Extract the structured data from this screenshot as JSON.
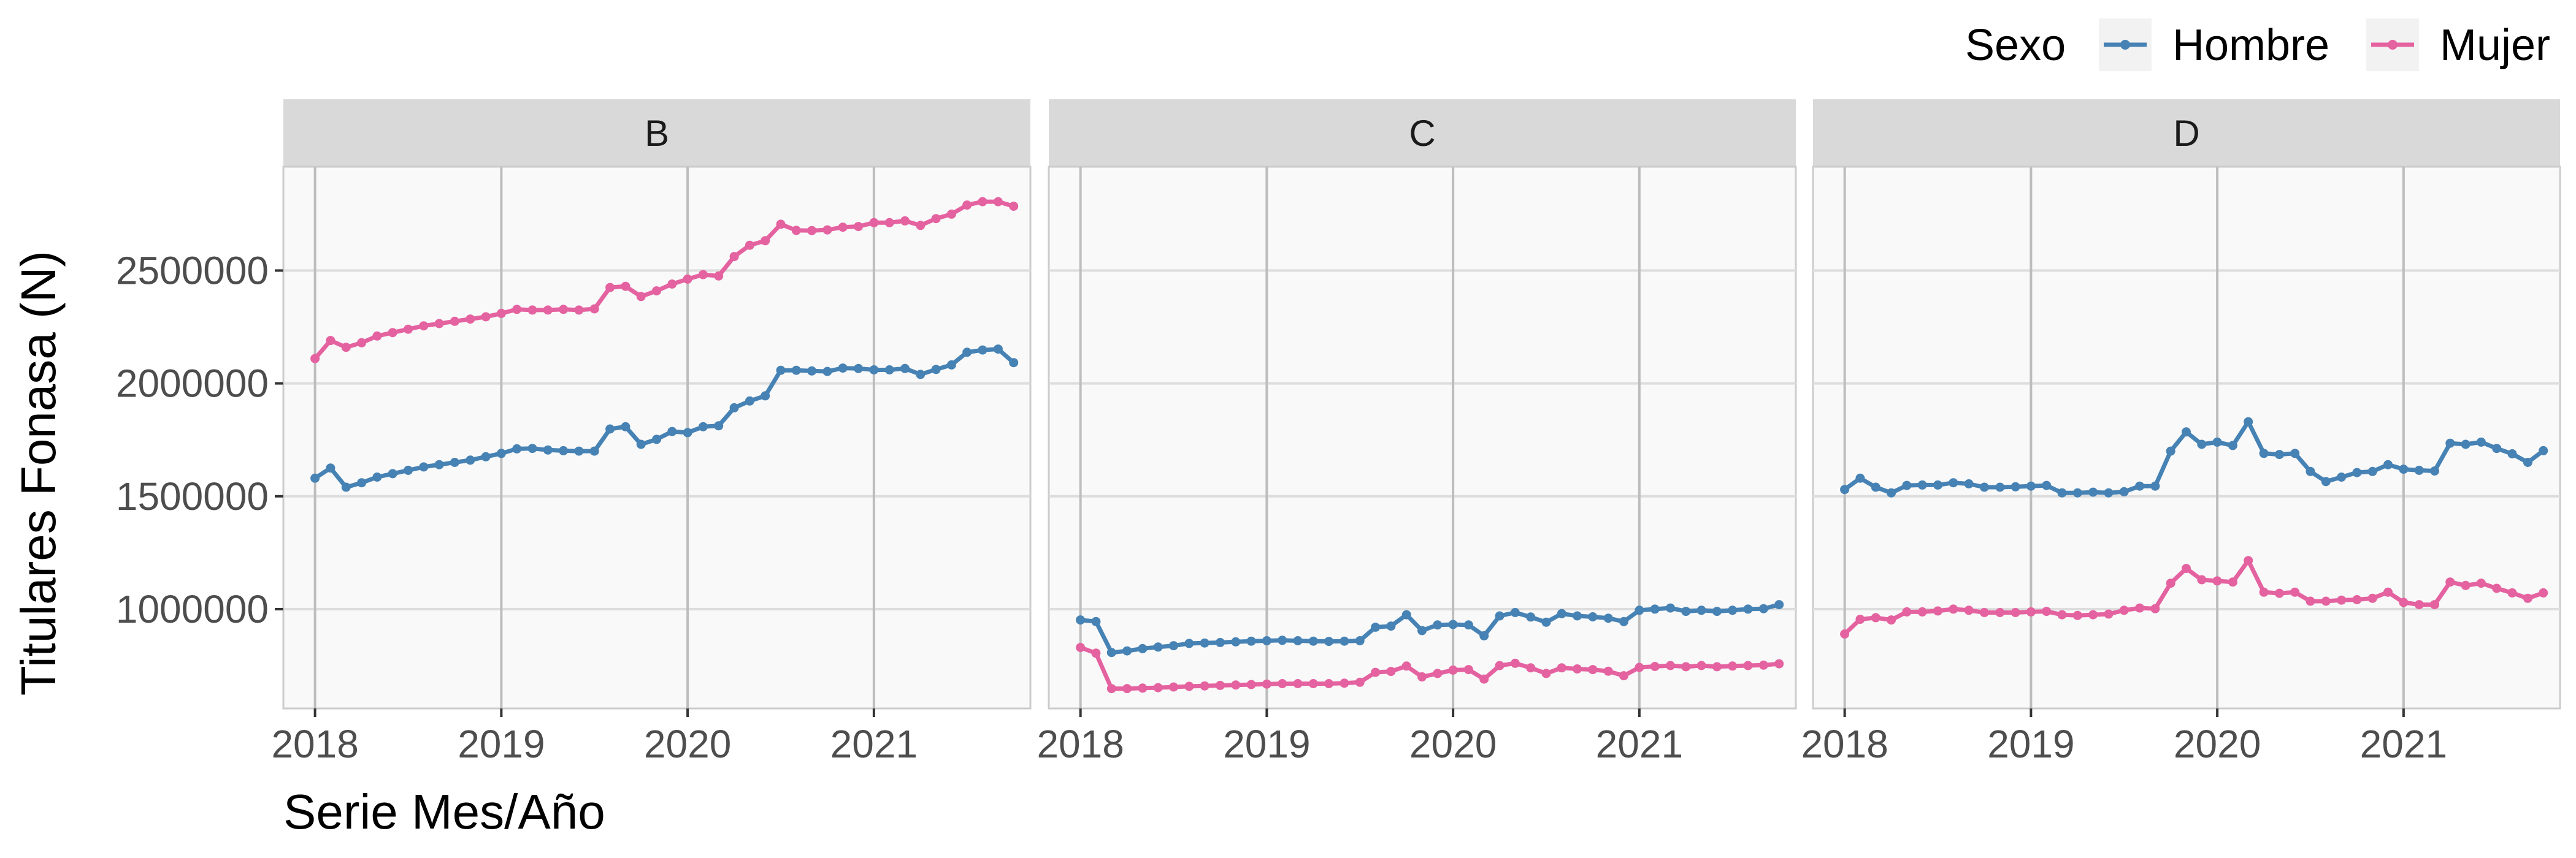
{
  "chart_data": {
    "type": "line",
    "title": "",
    "xlabel": "Serie Mes/Año",
    "ylabel": "Titulares Fonasa (N)",
    "legend": {
      "title": "Sexo",
      "position": "top-right",
      "entries": [
        {
          "name": "Hombre",
          "color": "#4682B4"
        },
        {
          "name": "Mujer",
          "color": "#E462A0"
        }
      ]
    },
    "x_ticks": [
      2018,
      2019,
      2020,
      2021
    ],
    "xlim": [
      2017.83,
      2021.84
    ],
    "y_ticks": [
      1000000,
      1500000,
      2000000,
      2500000
    ],
    "y_tick_labels": [
      "1000000",
      "1500000",
      "2000000",
      "2500000"
    ],
    "ylim": [
      560000,
      2960000
    ],
    "grid": true,
    "x_start": 2018,
    "x_step_months": 1,
    "panels": [
      {
        "label": "B",
        "series": [
          {
            "name": "Hombre",
            "color": "#4682B4",
            "values": [
              1580000,
              1625000,
              1540000,
              1560000,
              1585000,
              1600000,
              1615000,
              1630000,
              1640000,
              1650000,
              1660000,
              1675000,
              1690000,
              1710000,
              1712000,
              1705000,
              1702000,
              1700000,
              1700000,
              1798000,
              1808000,
              1730000,
              1752000,
              1787000,
              1782000,
              1808000,
              1812000,
              1892000,
              1922000,
              1945000,
              2058000,
              2058000,
              2055000,
              2053000,
              2068000,
              2066000,
              2060000,
              2060000,
              2066000,
              2040000,
              2062000,
              2082000,
              2138000,
              2148000,
              2152000,
              2092000
            ]
          },
          {
            "name": "Mujer",
            "color": "#E462A0",
            "values": [
              2110000,
              2190000,
              2160000,
              2180000,
              2210000,
              2225000,
              2240000,
              2255000,
              2265000,
              2275000,
              2285000,
              2295000,
              2310000,
              2328000,
              2325000,
              2325000,
              2328000,
              2325000,
              2330000,
              2425000,
              2430000,
              2385000,
              2410000,
              2440000,
              2462000,
              2482000,
              2476000,
              2562000,
              2612000,
              2632000,
              2705000,
              2678000,
              2677000,
              2680000,
              2692000,
              2695000,
              2712000,
              2712000,
              2720000,
              2700000,
              2730000,
              2750000,
              2790000,
              2805000,
              2805000,
              2785000
            ]
          }
        ]
      },
      {
        "label": "C",
        "series": [
          {
            "name": "Hombre",
            "color": "#4682B4",
            "values": [
              952000,
              945000,
              808000,
              815000,
              825000,
              832000,
              838000,
              848000,
              850000,
              852000,
              855000,
              858000,
              860000,
              862000,
              860000,
              858000,
              857000,
              858000,
              860000,
              920000,
              925000,
              975000,
              905000,
              930000,
              932000,
              930000,
              882000,
              970000,
              985000,
              965000,
              942000,
              980000,
              970000,
              966000,
              960000,
              945000,
              995000,
              1000000,
              1005000,
              990000,
              995000,
              990000,
              995000,
              1000000,
              1002000,
              1020000
            ]
          },
          {
            "name": "Mujer",
            "color": "#E462A0",
            "values": [
              830000,
              805000,
              648000,
              648000,
              650000,
              652000,
              655000,
              658000,
              660000,
              662000,
              664000,
              666000,
              668000,
              670000,
              670000,
              670000,
              670000,
              672000,
              676000,
              720000,
              724000,
              748000,
              700000,
              715000,
              730000,
              732000,
              690000,
              750000,
              760000,
              740000,
              715000,
              740000,
              735000,
              732000,
              725000,
              705000,
              742000,
              746000,
              750000,
              745000,
              750000,
              745000,
              748000,
              750000,
              752000,
              758000
            ]
          }
        ]
      },
      {
        "label": "D",
        "series": [
          {
            "name": "Hombre",
            "color": "#4682B4",
            "values": [
              1530000,
              1580000,
              1540000,
              1515000,
              1548000,
              1550000,
              1550000,
              1560000,
              1555000,
              1540000,
              1540000,
              1542000,
              1545000,
              1548000,
              1515000,
              1515000,
              1518000,
              1515000,
              1520000,
              1545000,
              1545000,
              1700000,
              1785000,
              1730000,
              1740000,
              1725000,
              1830000,
              1690000,
              1685000,
              1690000,
              1610000,
              1565000,
              1585000,
              1605000,
              1610000,
              1640000,
              1620000,
              1615000,
              1612000,
              1735000,
              1730000,
              1740000,
              1712000,
              1688000,
              1650000,
              1702000
            ]
          },
          {
            "name": "Mujer",
            "color": "#E462A0",
            "values": [
              890000,
              955000,
              962000,
              952000,
              988000,
              988000,
              992000,
              1000000,
              995000,
              985000,
              985000,
              985000,
              988000,
              990000,
              975000,
              972000,
              975000,
              978000,
              995000,
              1005000,
              1002000,
              1115000,
              1180000,
              1130000,
              1125000,
              1120000,
              1215000,
              1075000,
              1070000,
              1075000,
              1035000,
              1035000,
              1040000,
              1042000,
              1048000,
              1075000,
              1030000,
              1020000,
              1020000,
              1120000,
              1105000,
              1115000,
              1092000,
              1072000,
              1048000,
              1072000
            ]
          }
        ]
      }
    ]
  }
}
